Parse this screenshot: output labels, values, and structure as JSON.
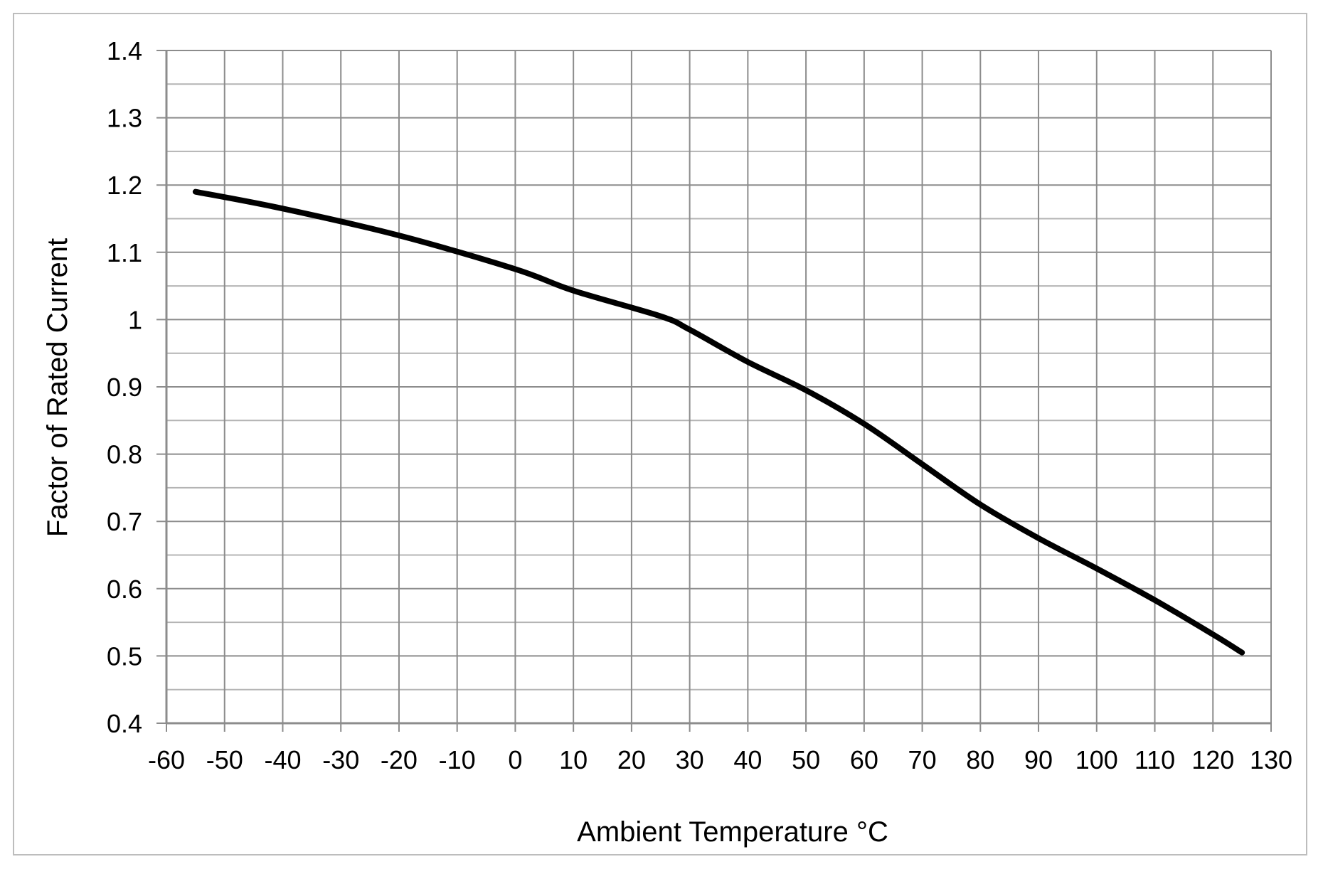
{
  "chart_data": {
    "type": "line",
    "title": "",
    "xlabel": "Ambient Temperature °C",
    "ylabel": "Factor of Rated Current",
    "xlim": [
      -60,
      130
    ],
    "ylim": [
      0.4,
      1.4
    ],
    "x_ticks": [
      -60,
      -50,
      -40,
      -30,
      -20,
      -10,
      0,
      10,
      20,
      30,
      40,
      50,
      60,
      70,
      80,
      90,
      100,
      110,
      120,
      130
    ],
    "y_ticks": [
      0.4,
      0.5,
      0.6,
      0.7,
      0.8,
      0.9,
      1,
      1.1,
      1.2,
      1.3,
      1.4
    ],
    "y_tick_labels": [
      "0.4",
      "0.5",
      "0.6",
      "0.7",
      "0.8",
      "0.9",
      "1",
      "1.1",
      "1.2",
      "1.3",
      "1.4"
    ],
    "grid": true,
    "legend": "none",
    "line_color": "#000000",
    "grid_color": "#8c8c8c",
    "series": [
      {
        "x": [
          -55,
          -40,
          -20,
          0,
          10,
          25,
          30,
          40,
          50,
          60,
          70,
          80,
          90,
          100,
          110,
          120,
          125
        ],
        "y": [
          1.19,
          1.165,
          1.125,
          1.075,
          1.043,
          1.005,
          0.985,
          0.937,
          0.895,
          0.845,
          0.785,
          0.725,
          0.675,
          0.63,
          0.583,
          0.532,
          0.505
        ]
      }
    ]
  }
}
